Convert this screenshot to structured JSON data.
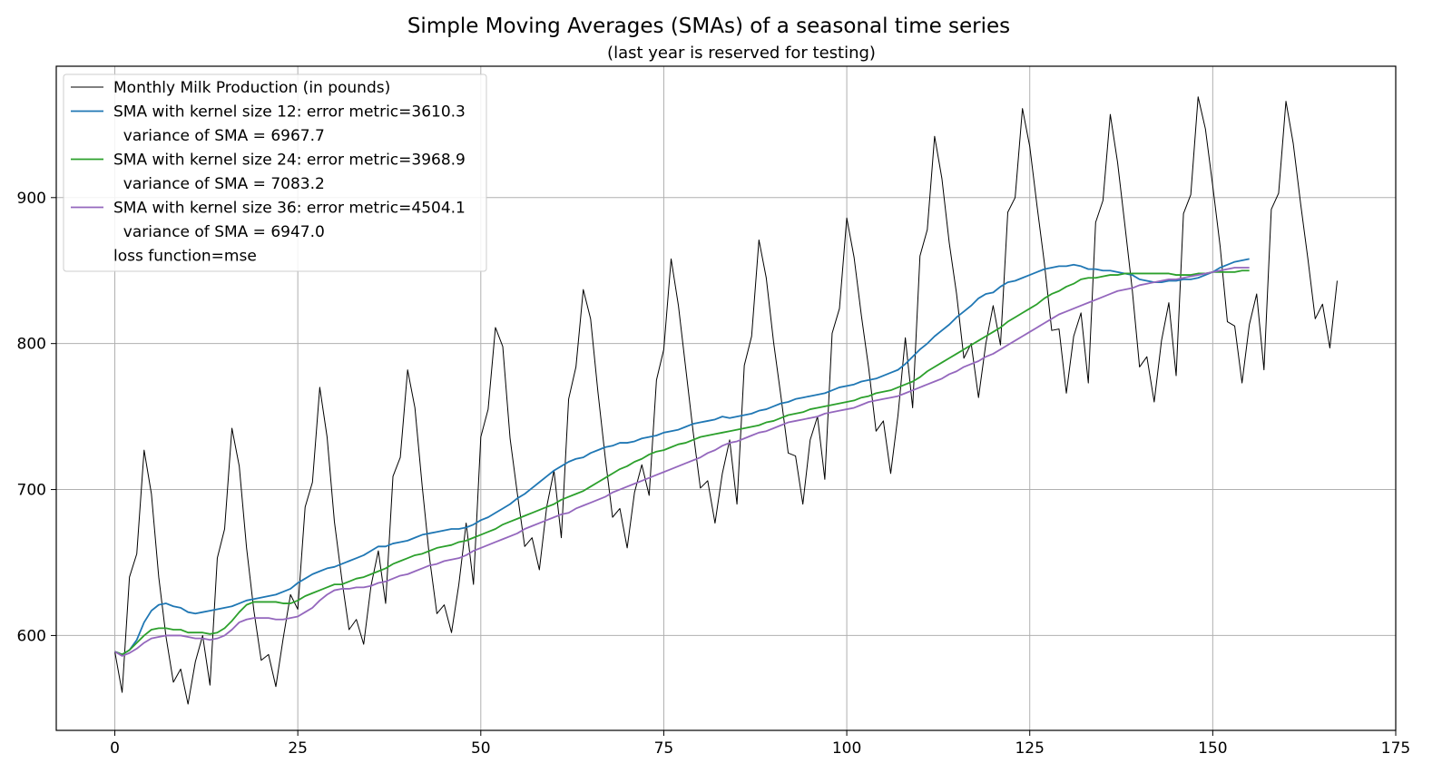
{
  "chart_data": {
    "type": "line",
    "title": "Simple Moving Averages (SMAs) of a seasonal time series",
    "subtitle": "(last year is reserved for testing)",
    "xlabel": "",
    "ylabel": "",
    "xlim": [
      -8,
      175
    ],
    "ylim": [
      535,
      990
    ],
    "xticks": [
      0,
      25,
      50,
      75,
      100,
      125,
      150,
      175
    ],
    "yticks": [
      600,
      700,
      800,
      900
    ],
    "grid": true,
    "legend_position": "top-left",
    "legend": [
      "Monthly Milk Production (in pounds)",
      "SMA with kernel size 12: error metric=3610.3",
      "  variance of SMA = 6967.7",
      "SMA with kernel size 24: error metric=3968.9",
      "  variance of SMA = 7083.2",
      "SMA with kernel size 36: error metric=4504.1",
      "  variance of SMA = 6947.0",
      "loss function=mse"
    ],
    "series": [
      {
        "name": "Monthly Milk Production (in pounds)",
        "color": "#000000",
        "values": [
          589,
          561,
          640,
          656,
          727,
          697,
          640,
          599,
          568,
          577,
          553,
          582,
          600,
          566,
          653,
          673,
          742,
          716,
          660,
          617,
          583,
          587,
          565,
          598,
          628,
          618,
          688,
          705,
          770,
          736,
          678,
          639,
          604,
          611,
          594,
          634,
          658,
          622,
          709,
          722,
          782,
          756,
          702,
          653,
          615,
          621,
          602,
          635,
          677,
          635,
          736,
          755,
          811,
          798,
          735,
          697,
          661,
          667,
          645,
          688,
          713,
          667,
          762,
          784,
          837,
          817,
          767,
          722,
          681,
          687,
          660,
          698,
          717,
          696,
          775,
          796,
          858,
          826,
          783,
          740,
          701,
          706,
          677,
          711,
          734,
          690,
          785,
          805,
          871,
          845,
          801,
          764,
          725,
          723,
          690,
          734,
          750,
          707,
          807,
          824,
          886,
          859,
          819,
          783,
          740,
          747,
          711,
          751,
          804,
          756,
          860,
          878,
          942,
          913,
          869,
          834,
          790,
          800,
          763,
          800,
          826,
          799,
          890,
          900,
          961,
          935,
          894,
          855,
          809,
          810,
          766,
          805,
          821,
          773,
          883,
          898,
          957,
          924,
          881,
          837,
          784,
          791,
          760,
          802,
          828,
          778,
          889,
          902,
          969,
          947,
          908,
          867,
          815,
          812,
          773,
          813,
          834,
          782,
          892,
          903,
          966,
          937,
          896,
          858,
          817,
          827,
          797,
          843
        ]
      },
      {
        "name": "SMA with kernel size 12",
        "color": "#1f77b4",
        "values": [
          589,
          587,
          590,
          597,
          609,
          617,
          621,
          622,
          620,
          619,
          616,
          615,
          616,
          617,
          618,
          619,
          620,
          622,
          624,
          625,
          626,
          627,
          628,
          630,
          632,
          636,
          639,
          642,
          644,
          646,
          647,
          649,
          651,
          653,
          655,
          658,
          661,
          661,
          663,
          664,
          665,
          667,
          669,
          670,
          671,
          672,
          673,
          673,
          674,
          676,
          679,
          681,
          684,
          687,
          690,
          694,
          697,
          701,
          705,
          709,
          713,
          716,
          719,
          721,
          722,
          725,
          727,
          729,
          730,
          732,
          732,
          733,
          735,
          736,
          737,
          739,
          740,
          741,
          743,
          745,
          746,
          747,
          748,
          750,
          749,
          750,
          751,
          752,
          754,
          755,
          757,
          759,
          760,
          762,
          763,
          764,
          765,
          766,
          768,
          770,
          771,
          772,
          774,
          775,
          776,
          778,
          780,
          782,
          786,
          791,
          796,
          800,
          805,
          809,
          813,
          818,
          822,
          826,
          831,
          834,
          835,
          839,
          842,
          843,
          845,
          847,
          849,
          851,
          852,
          853,
          853,
          854,
          853,
          851,
          851,
          850,
          850,
          849,
          848,
          847,
          844,
          843,
          842,
          842,
          843,
          843,
          844,
          844,
          845,
          847,
          849,
          852,
          854,
          856,
          857,
          858
        ]
      },
      {
        "name": "SMA with kernel size 24",
        "color": "#2ca02c",
        "values": [
          589,
          587,
          590,
          595,
          600,
          604,
          605,
          605,
          604,
          604,
          602,
          602,
          602,
          601,
          602,
          605,
          610,
          616,
          621,
          623,
          623,
          623,
          623,
          622,
          622,
          624,
          627,
          629,
          631,
          633,
          635,
          635,
          637,
          639,
          640,
          642,
          644,
          646,
          649,
          651,
          653,
          655,
          656,
          658,
          660,
          661,
          662,
          664,
          665,
          667,
          669,
          671,
          673,
          676,
          678,
          680,
          682,
          684,
          686,
          688,
          690,
          693,
          695,
          697,
          699,
          702,
          705,
          708,
          711,
          714,
          716,
          719,
          721,
          724,
          726,
          727,
          729,
          731,
          732,
          734,
          736,
          737,
          738,
          739,
          740,
          741,
          742,
          743,
          744,
          746,
          747,
          749,
          751,
          752,
          753,
          755,
          756,
          757,
          758,
          759,
          760,
          761,
          763,
          764,
          766,
          767,
          768,
          770,
          772,
          774,
          777,
          781,
          784,
          787,
          790,
          793,
          796,
          799,
          802,
          805,
          808,
          811,
          815,
          818,
          821,
          824,
          827,
          831,
          834,
          836,
          839,
          841,
          844,
          845,
          845,
          846,
          847,
          847,
          848,
          848,
          848,
          848,
          848,
          848,
          848,
          847,
          847,
          847,
          848,
          848,
          849,
          849,
          849,
          849,
          850,
          850
        ]
      },
      {
        "name": "SMA with kernel size 36",
        "color": "#9467bd",
        "values": [
          589,
          586,
          588,
          591,
          595,
          598,
          599,
          600,
          600,
          600,
          599,
          598,
          598,
          597,
          598,
          600,
          604,
          609,
          611,
          612,
          612,
          612,
          611,
          611,
          612,
          613,
          616,
          619,
          624,
          628,
          631,
          632,
          632,
          633,
          633,
          634,
          636,
          637,
          639,
          641,
          642,
          644,
          646,
          648,
          649,
          651,
          652,
          653,
          655,
          658,
          660,
          662,
          664,
          666,
          668,
          670,
          673,
          675,
          677,
          679,
          681,
          683,
          684,
          687,
          689,
          691,
          693,
          695,
          698,
          700,
          702,
          704,
          706,
          708,
          710,
          712,
          714,
          716,
          718,
          720,
          722,
          725,
          727,
          730,
          732,
          733,
          735,
          737,
          739,
          740,
          742,
          744,
          746,
          747,
          748,
          749,
          750,
          752,
          753,
          754,
          755,
          756,
          758,
          760,
          761,
          762,
          763,
          764,
          766,
          768,
          770,
          772,
          774,
          776,
          779,
          781,
          784,
          786,
          788,
          791,
          793,
          796,
          799,
          802,
          805,
          808,
          811,
          814,
          817,
          820,
          822,
          824,
          826,
          828,
          830,
          832,
          834,
          836,
          837,
          838,
          840,
          841,
          842,
          843,
          844,
          844,
          845,
          846,
          847,
          848,
          849,
          850,
          851,
          852,
          852,
          852
        ]
      }
    ]
  }
}
